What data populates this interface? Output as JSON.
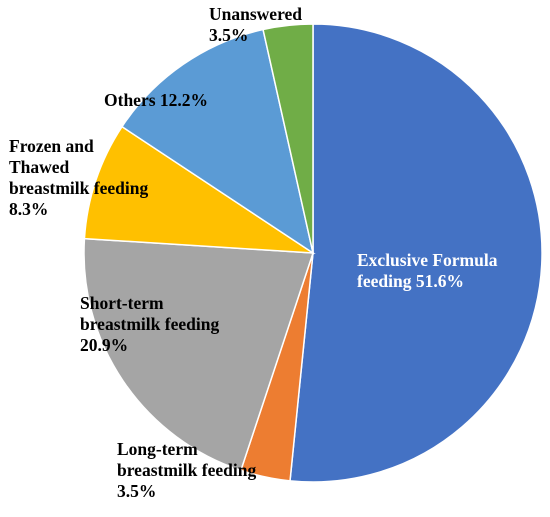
{
  "chart_data": {
    "type": "pie",
    "title": "",
    "start_angle_deg": 0,
    "direction": "clockwise",
    "legend": "none",
    "slices": [
      {
        "key": "exclusive_formula",
        "value": 51.6,
        "color": "#4472C4",
        "label_color": "#FFFFFF",
        "label_lines": [
          "Exclusive Formula",
          "feeding 51.6%"
        ]
      },
      {
        "key": "long_term",
        "value": 3.5,
        "color": "#ED7D31",
        "label_color": "#000000",
        "label_lines": [
          "Long-term",
          "breastmilk feeding",
          "3.5%"
        ]
      },
      {
        "key": "short_term",
        "value": 20.9,
        "color": "#A5A5A5",
        "label_color": "#000000",
        "label_lines": [
          "Short-term",
          "breastmilk feeding",
          "20.9%"
        ]
      },
      {
        "key": "frozen_thawed",
        "value": 8.3,
        "color": "#FFC000",
        "label_color": "#000000",
        "label_lines": [
          "Frozen and",
          "Thawed",
          "breastmilk feeding",
          "8.3%"
        ]
      },
      {
        "key": "others",
        "value": 12.2,
        "color": "#5B9BD5",
        "label_color": "#000000",
        "label_lines": [
          "Others 12.2%"
        ]
      },
      {
        "key": "unanswered",
        "value": 3.5,
        "color": "#70AD47",
        "label_color": "#000000",
        "label_lines": [
          "Unanswered",
          "3.5%"
        ]
      }
    ]
  }
}
